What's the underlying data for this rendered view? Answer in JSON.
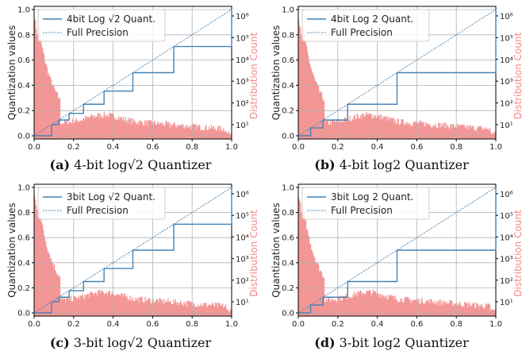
{
  "chart_data": [
    {
      "type": "line",
      "caption_label": "(a)",
      "caption_text": "4-bit log√2 Quantizer",
      "ylabel": "Quantization values",
      "y2label": "Distribution Count",
      "xlim": [
        0.0,
        1.0
      ],
      "ylim": [
        0.0,
        1.0
      ],
      "x_ticks": [
        "0.0",
        "0.2",
        "0.4",
        "0.6",
        "0.8",
        "1.0"
      ],
      "y_ticks": [
        "0.0",
        "0.2",
        "0.4",
        "0.6",
        "0.8",
        "1.0"
      ],
      "y2_ticks": [
        "10¹",
        "10²",
        "10³",
        "10⁴",
        "10⁵",
        "10⁶"
      ],
      "y2_scale": "log",
      "grid": true,
      "legend_position": "top-left",
      "series": [
        {
          "name": "4bit Log √2 Quant.",
          "style": "step",
          "color": "#4682b4",
          "steps": [
            [
              0.0,
              0.0
            ],
            [
              0.0884,
              0.0884
            ],
            [
              0.125,
              0.125
            ],
            [
              0.177,
              0.177
            ],
            [
              0.25,
              0.25
            ],
            [
              0.354,
              0.354
            ],
            [
              0.5,
              0.5
            ],
            [
              0.707,
              0.707
            ],
            [
              1.0,
              1.0
            ]
          ]
        },
        {
          "name": "Full Precision",
          "style": "dotted",
          "color": "#4682b4",
          "x": [
            0.0,
            1.0
          ],
          "y": [
            0.0,
            1.0
          ]
        }
      ]
    },
    {
      "type": "line",
      "caption_label": "(b)",
      "caption_text": "4-bit log2 Quantizer",
      "ylabel": "Quantization values",
      "y2label": "Distribution Count",
      "xlim": [
        0.0,
        1.0
      ],
      "ylim": [
        0.0,
        1.0
      ],
      "x_ticks": [
        "0.0",
        "0.2",
        "0.4",
        "0.6",
        "0.8",
        "1.0"
      ],
      "y_ticks": [
        "0.0",
        "0.2",
        "0.4",
        "0.6",
        "0.8",
        "1.0"
      ],
      "y2_ticks": [
        "10¹",
        "10²",
        "10³",
        "10⁴",
        "10⁵",
        "10⁶"
      ],
      "y2_scale": "log",
      "grid": true,
      "legend_position": "top-left",
      "series": [
        {
          "name": "4bit Log 2 Quant.",
          "style": "step",
          "color": "#4682b4",
          "steps": [
            [
              0.0,
              0.0
            ],
            [
              0.0625,
              0.0625
            ],
            [
              0.125,
              0.125
            ],
            [
              0.25,
              0.25
            ],
            [
              0.5,
              0.5
            ],
            [
              1.0,
              1.0
            ]
          ]
        },
        {
          "name": "Full Precision",
          "style": "dotted",
          "color": "#4682b4",
          "x": [
            0.0,
            1.0
          ],
          "y": [
            0.0,
            1.0
          ]
        }
      ]
    },
    {
      "type": "line",
      "caption_label": "(c)",
      "caption_text": "3-bit log√2 Quantizer",
      "ylabel": "Quantization values",
      "y2label": "Distribution Count",
      "xlim": [
        0.0,
        1.0
      ],
      "ylim": [
        0.0,
        1.0
      ],
      "x_ticks": [
        "0.0",
        "0.2",
        "0.4",
        "0.6",
        "0.8",
        "1.0"
      ],
      "y_ticks": [
        "0.0",
        "0.2",
        "0.4",
        "0.6",
        "0.8",
        "1.0"
      ],
      "y2_ticks": [
        "10¹",
        "10²",
        "10³",
        "10⁴",
        "10⁵",
        "10⁶"
      ],
      "y2_scale": "log",
      "grid": true,
      "legend_position": "top-left",
      "series": [
        {
          "name": "3bit Log √2 Quant.",
          "style": "step",
          "color": "#4682b4",
          "steps": [
            [
              0.0,
              0.0
            ],
            [
              0.0884,
              0.0884
            ],
            [
              0.125,
              0.125
            ],
            [
              0.177,
              0.177
            ],
            [
              0.25,
              0.25
            ],
            [
              0.354,
              0.354
            ],
            [
              0.5,
              0.5
            ],
            [
              0.707,
              0.707
            ],
            [
              1.0,
              1.0
            ]
          ]
        },
        {
          "name": "Full Precision",
          "style": "dotted",
          "color": "#4682b4",
          "x": [
            0.0,
            1.0
          ],
          "y": [
            0.0,
            1.0
          ]
        }
      ]
    },
    {
      "type": "line",
      "caption_label": "(d)",
      "caption_text": "3-bit log2 Quantizer",
      "ylabel": "Quantization values",
      "y2label": "Distribution Count",
      "xlim": [
        0.0,
        1.0
      ],
      "ylim": [
        0.0,
        1.0
      ],
      "x_ticks": [
        "0.0",
        "0.2",
        "0.4",
        "0.6",
        "0.8",
        "1.0"
      ],
      "y_ticks": [
        "0.0",
        "0.2",
        "0.4",
        "0.6",
        "0.8",
        "1.0"
      ],
      "y2_ticks": [
        "10¹",
        "10²",
        "10³",
        "10⁴",
        "10⁵",
        "10⁶"
      ],
      "y2_scale": "log",
      "grid": true,
      "legend_position": "top-left",
      "series": [
        {
          "name": "3bit Log 2 Quant.",
          "style": "step",
          "color": "#4682b4",
          "steps": [
            [
              0.0,
              0.0
            ],
            [
              0.0625,
              0.0625
            ],
            [
              0.125,
              0.125
            ],
            [
              0.25,
              0.25
            ],
            [
              0.5,
              0.5
            ],
            [
              1.0,
              1.0
            ]
          ]
        },
        {
          "name": "Full Precision",
          "style": "dotted",
          "color": "#4682b4",
          "x": [
            0.0,
            1.0
          ],
          "y": [
            0.0,
            1.0
          ]
        }
      ]
    }
  ],
  "colors": {
    "quant_line": "#4682b4",
    "histogram": "#f28b8b",
    "grid": "#b0b0b0"
  }
}
